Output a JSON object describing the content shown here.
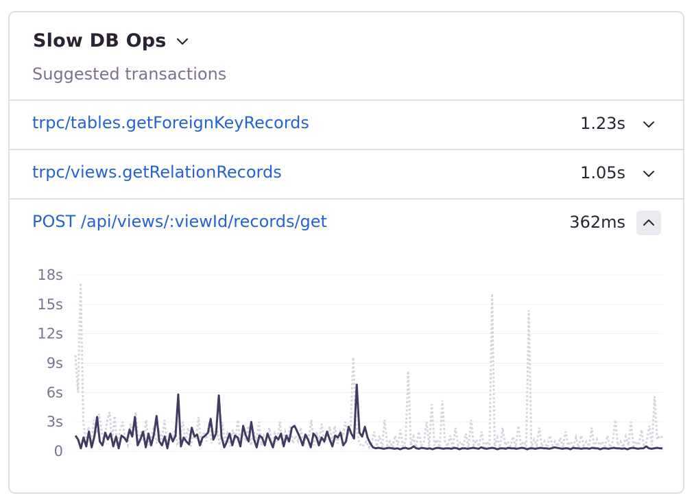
{
  "widget": {
    "title": "Slow DB Ops",
    "subtitle": "Suggested transactions"
  },
  "transactions": [
    {
      "name": "trpc/tables.getForeignKeyRecords",
      "value": "1.23s",
      "expanded": false
    },
    {
      "name": "trpc/views.getRelationRecords",
      "value": "1.05s",
      "expanded": false
    },
    {
      "name": "POST /api/views/:viewId/records/get",
      "value": "362ms",
      "expanded": true
    }
  ],
  "icons": {
    "title_dropdown": "chevron-down-icon",
    "collapsed": "chevron-down-icon",
    "expanded": "chevron-up-icon"
  },
  "colors": {
    "link": "#2562d4",
    "primary_series": "#3e3c63",
    "secondary_series": "#d6d3de",
    "axis_text": "#80708f",
    "toggle_bg": "#ebe8ef"
  },
  "chart_data": {
    "type": "line",
    "title": "",
    "xlabel": "",
    "ylabel": "",
    "ylim": [
      0,
      18
    ],
    "yticks": [
      0,
      3,
      6,
      9,
      12,
      15,
      18
    ],
    "yticklabels": [
      "0",
      "3s",
      "6s",
      "9s",
      "12s",
      "15s",
      "18s"
    ],
    "grid": true,
    "series": [
      {
        "style": "solid",
        "values": [
          1.6,
          1.2,
          0.3,
          1.4,
          0.5,
          2.0,
          0.4,
          1.5,
          3.5,
          1.0,
          0.6,
          1.9,
          1.2,
          1.8,
          0.5,
          1.5,
          0.3,
          1.6,
          1.4,
          1.0,
          2.2,
          1.5,
          3.5,
          0.6,
          1.2,
          2.0,
          0.4,
          1.8,
          0.6,
          1.7,
          3.6,
          1.0,
          0.6,
          1.5,
          0.3,
          1.8,
          1.0,
          1.6,
          5.8,
          0.5,
          1.4,
          1.0,
          0.7,
          2.4,
          1.5,
          1.7,
          0.6,
          1.4,
          1.6,
          1.9,
          3.3,
          1.2,
          1.8,
          5.7,
          1.5,
          0.4,
          1.0,
          1.8,
          0.6,
          1.6,
          1.4,
          0.5,
          2.6,
          1.6,
          1.0,
          3.0,
          1.2,
          0.4,
          1.6,
          1.4,
          0.6,
          1.8,
          1.1,
          0.4,
          1.5,
          1.2,
          1.8,
          0.5,
          1.6,
          1.0,
          2.4,
          2.6,
          2.0,
          1.4,
          0.6,
          1.7,
          1.2,
          0.4,
          1.8,
          1.5,
          0.6,
          1.4,
          1.0,
          2.0,
          1.2,
          0.5,
          1.6,
          1.4,
          1.9,
          0.6,
          1.0,
          2.5,
          1.8,
          1.3,
          6.8,
          1.9,
          1.5,
          2.5,
          1.4,
          0.8,
          0.4,
          0.3,
          0.35,
          0.3,
          0.25,
          0.3,
          0.35,
          0.3,
          0.25,
          0.3,
          0.2,
          0.3,
          0.35,
          0.25,
          0.3,
          0.5,
          0.3,
          0.25,
          0.35,
          0.3,
          0.25,
          0.3,
          0.2,
          0.3,
          0.35,
          0.3,
          0.25,
          0.3,
          0.3,
          0.25,
          0.35,
          0.3,
          0.2,
          0.3,
          0.3,
          0.25,
          0.3,
          0.35,
          0.3,
          0.25,
          0.4,
          0.3,
          0.25,
          0.3,
          0.35,
          0.3,
          0.2,
          0.3,
          0.3,
          0.25,
          0.35,
          0.3,
          0.3,
          0.25,
          0.3,
          0.35,
          0.3,
          0.2,
          0.3,
          0.3,
          0.25,
          0.3,
          0.35,
          0.3,
          0.3,
          0.25,
          0.3,
          0.4,
          0.35,
          0.3,
          0.25,
          0.3,
          0.3,
          0.2,
          0.35,
          0.3,
          0.3,
          0.25,
          0.3,
          0.3,
          0.25,
          0.35,
          0.3,
          0.3,
          0.2,
          0.3,
          0.3,
          0.25,
          0.3,
          0.35,
          0.3,
          0.3,
          0.25,
          0.3,
          0.2,
          0.3,
          0.35,
          0.3,
          0.25,
          0.3,
          0.3,
          0.5,
          0.3,
          0.25,
          0.3,
          0.35,
          0.3,
          0.3
        ]
      },
      {
        "style": "dotted",
        "values": [
          9.8,
          6.0,
          17.2,
          3.0,
          1.0,
          2.5,
          0.5,
          3.2,
          1.8,
          3.8,
          2.0,
          0.8,
          3.0,
          4.0,
          1.0,
          3.6,
          0.5,
          2.2,
          3.0,
          1.2,
          0.6,
          2.8,
          1.5,
          4.0,
          0.8,
          2.0,
          1.0,
          3.2,
          0.6,
          1.5,
          2.6,
          0.8,
          2.0,
          1.2,
          3.2,
          0.5,
          1.8,
          1.0,
          2.2,
          0.6,
          1.6,
          3.0,
          1.0,
          2.4,
          0.5,
          1.8,
          1.2,
          3.5,
          0.6,
          2.0,
          1.0,
          3.0,
          0.8,
          1.8,
          2.4,
          0.6,
          3.0,
          1.0,
          1.8,
          0.5,
          2.2,
          1.2,
          3.2,
          0.8,
          1.8,
          1.0,
          2.6,
          0.6,
          2.0,
          1.0,
          3.0,
          0.6,
          1.6,
          1.2,
          2.4,
          0.5,
          1.8,
          1.0,
          3.0,
          0.6,
          2.0,
          1.2,
          2.6,
          0.8,
          1.6,
          1.0,
          2.4,
          0.5,
          1.8,
          1.2,
          3.2,
          0.6,
          2.0,
          1.0,
          2.8,
          0.8,
          1.5,
          2.5,
          1.0,
          2.6,
          0.8,
          2.0,
          1.5,
          3.0,
          1.8,
          2.5,
          9.6,
          3.0,
          1.2,
          0.5,
          0.6,
          1.0,
          0.4,
          0.8,
          2.0,
          0.5,
          1.6,
          0.4,
          3.2,
          0.6,
          1.0,
          0.4,
          1.6,
          0.6,
          2.2,
          0.5,
          1.0,
          8.2,
          0.6,
          1.5,
          0.4,
          2.0,
          0.6,
          1.0,
          3.0,
          0.5,
          4.8,
          0.6,
          1.2,
          0.4,
          5.2,
          1.0,
          0.5,
          1.6,
          0.4,
          2.4,
          0.6,
          1.0,
          0.5,
          1.8,
          0.4,
          3.2,
          0.6,
          1.2,
          0.5,
          2.0,
          0.4,
          1.0,
          0.6,
          16.1,
          0.5,
          1.4,
          0.4,
          2.4,
          0.6,
          1.0,
          0.5,
          1.5,
          0.4,
          2.6,
          0.6,
          1.0,
          0.5,
          14.4,
          0.4,
          1.2,
          0.6,
          2.4,
          0.5,
          1.0,
          0.4,
          1.6,
          0.6,
          1.0,
          0.5,
          1.4,
          0.4,
          2.0,
          0.6,
          1.0,
          0.5,
          1.4,
          0.4,
          1.6,
          0.6,
          1.0,
          0.5,
          2.4,
          0.4,
          1.2,
          0.6,
          1.0,
          0.5,
          1.6,
          0.4,
          1.0,
          3.2,
          0.6,
          1.0,
          0.4,
          1.5,
          0.6,
          3.0,
          0.5,
          1.0,
          0.6,
          2.2,
          0.4,
          1.0,
          2.6,
          0.6,
          5.6,
          1.2,
          1.6,
          1.4
        ]
      }
    ]
  }
}
